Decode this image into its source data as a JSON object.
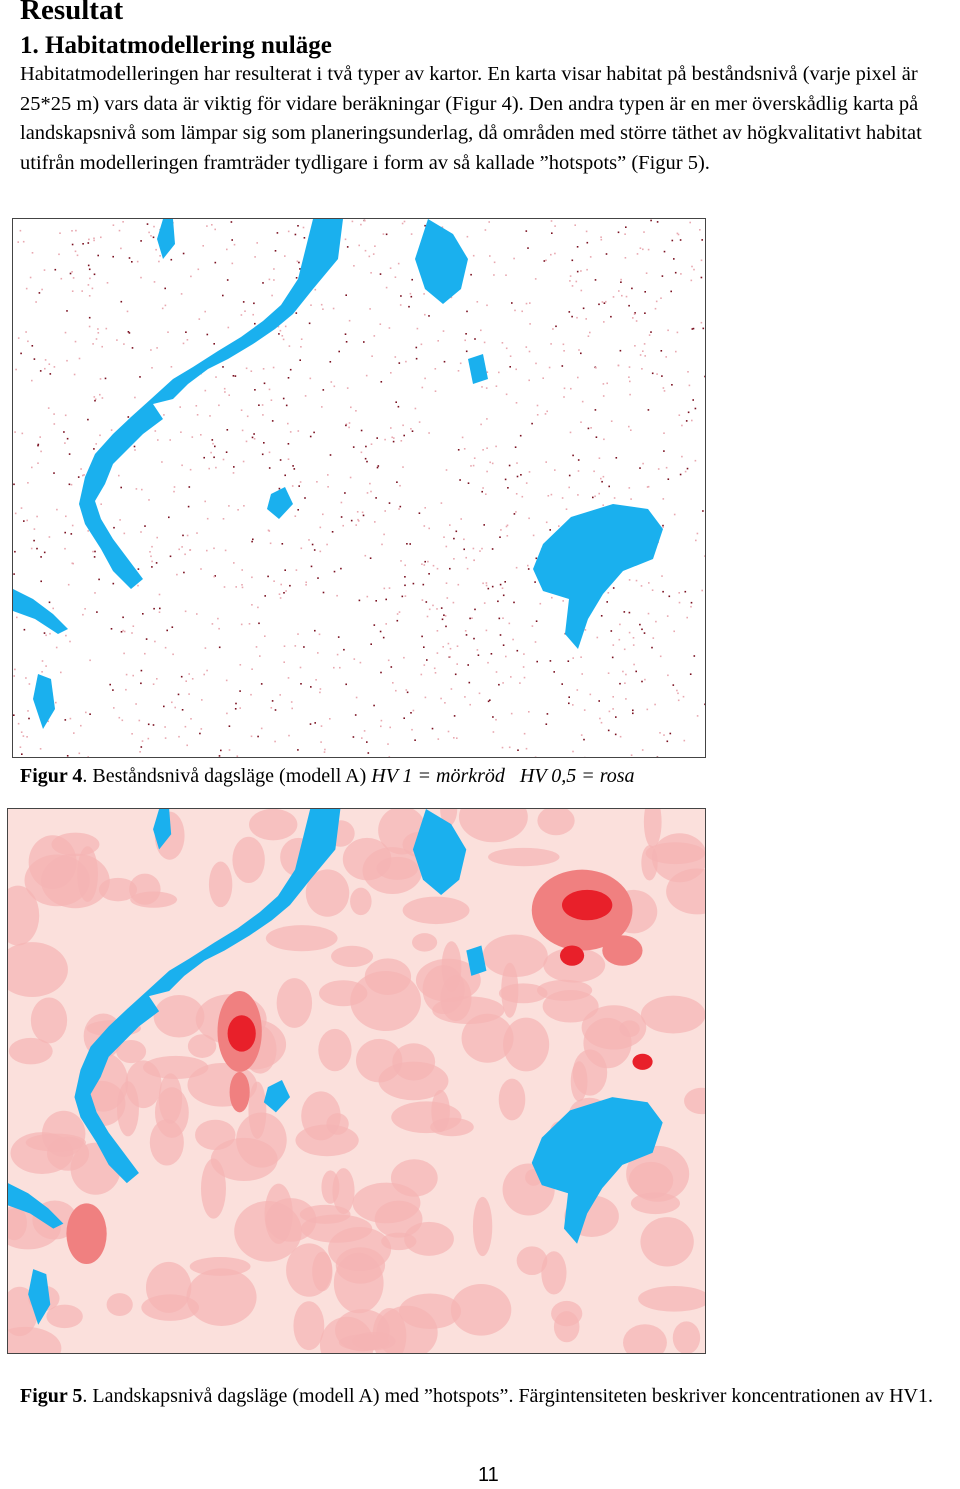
{
  "heading": "Resultat",
  "section": "1. Habitatmodellering nuläge",
  "paragraph": "Habitatmodelleringen har resulterat i två typer av kartor. En karta visar habitat på beståndsnivå (varje pixel är 25*25 m) vars data är viktig för vidare beräkningar (Figur 4). Den andra typen är en mer överskådlig karta på landskapsnivå som lämpar sig som planeringsunderlag, då områden med större täthet av högkvalitativt habitat utifrån modelleringen framträder tydligare i form av så kallade ”hotspots” (Figur 5).",
  "figures": [
    {
      "label": "Figur 4",
      "caption": ". Beståndsnivå dagsläge (modell A) ",
      "legend": "HV 1 = mörkröd   HV 0,5 = rosa"
    },
    {
      "label": "Figur 5",
      "caption": ". Landskapsnivå dagsläge (modell A) med ”hotspots”. Färgintensiteten beskriver koncentrationen av HV1."
    }
  ],
  "page_number": "11"
}
